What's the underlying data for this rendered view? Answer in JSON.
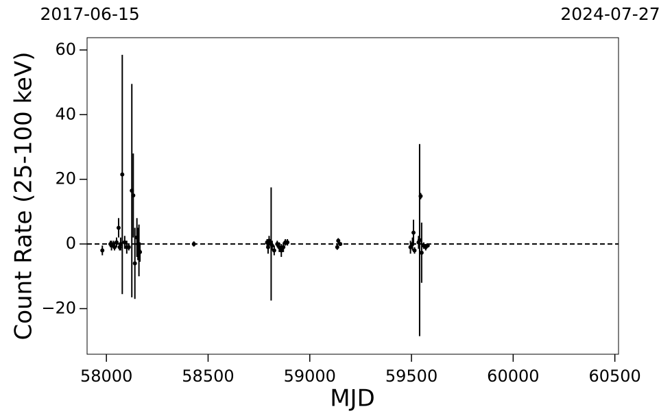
{
  "chart_data": {
    "type": "scatter",
    "xlabel": "MJD",
    "ylabel": "Count Rate (25-100 keV)",
    "xlim": [
      57905,
      60518
    ],
    "ylim": [
      -34.1,
      63.8
    ],
    "xticks": [
      58000,
      58500,
      59000,
      59500,
      60000,
      60500
    ],
    "yticks": [
      {
        "value": -20,
        "label": "−20"
      },
      0,
      20,
      40,
      60
    ],
    "x2ticks": [
      {
        "value": 57919,
        "label": "2017-06-15"
      },
      {
        "value": 60518,
        "label": "2024-07-27"
      }
    ],
    "hline": 0,
    "color": "#000000",
    "x": [
      57980,
      58020,
      58025,
      58035,
      58040,
      58050,
      58060,
      58065,
      58070,
      58078,
      58090,
      58100,
      58110,
      58125,
      58132,
      58140,
      58150,
      58155,
      58160,
      58165,
      58430,
      58790,
      58795,
      58800,
      58810,
      58815,
      58825,
      58840,
      58850,
      58860,
      58870,
      58880,
      58890,
      59135,
      59140,
      59150,
      59495,
      59505,
      59510,
      59515,
      59535,
      59540,
      59545,
      59550,
      59560,
      59570,
      59580
    ],
    "values": [
      -2,
      0,
      -0.5,
      0,
      -1,
      0.5,
      5,
      -1,
      0,
      21.5,
      0.5,
      -1,
      -1,
      16.5,
      15,
      -6,
      2,
      0,
      -2,
      -2.5,
      0,
      0.5,
      -1,
      1,
      0,
      -0.5,
      -2,
      0,
      -1,
      -2,
      -1,
      0.5,
      0.5,
      -1,
      1,
      0,
      -1,
      0,
      3.5,
      -2,
      0.5,
      1.2,
      14.8,
      -2.7,
      -0.5,
      -1,
      -0.5
    ],
    "errors": [
      1.5,
      1,
      1.5,
      1,
      1,
      1.5,
      3,
      1,
      2,
      37,
      2,
      2,
      1,
      33,
      13,
      11,
      6,
      5,
      8,
      3,
      0.8,
      1,
      2,
      1.5,
      17.5,
      1.5,
      1.5,
      1,
      1.5,
      2,
      1.5,
      1,
      1,
      0.8,
      0.8,
      0.5,
      2,
      2,
      4,
      1,
      2,
      29.7,
      1,
      9.3,
      1,
      1,
      0.5
    ]
  }
}
